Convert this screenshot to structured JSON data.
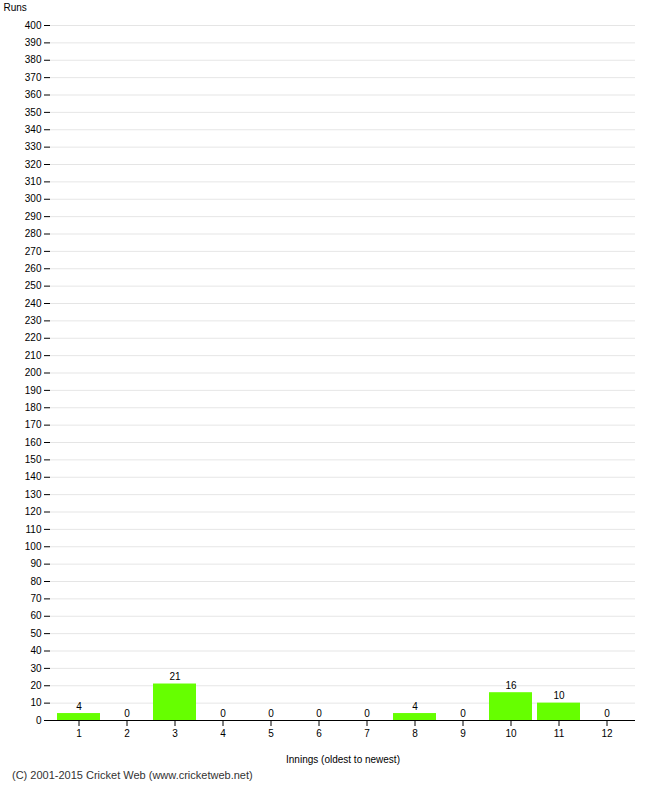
{
  "chart_data": {
    "type": "bar",
    "xlabel": "Innings (oldest to newest)",
    "ylabel": "Runs",
    "categories": [
      1,
      2,
      3,
      4,
      5,
      6,
      7,
      8,
      9,
      10,
      11,
      12
    ],
    "values": [
      4,
      0,
      21,
      0,
      0,
      0,
      0,
      4,
      0,
      16,
      10,
      0
    ],
    "color": "#66ff00",
    "ylim": [
      0,
      400
    ],
    "yticks": [
      0,
      10,
      20,
      30,
      40,
      50,
      60,
      70,
      80,
      90,
      100,
      110,
      120,
      130,
      140,
      150,
      160,
      170,
      180,
      190,
      200,
      210,
      220,
      230,
      240,
      250,
      260,
      270,
      280,
      290,
      300,
      310,
      320,
      330,
      340,
      350,
      360,
      370,
      380,
      390,
      400
    ],
    "grid": true,
    "data_labels": true,
    "footer": "(C) 2001-2015 Cricket Web (www.cricketweb.net)"
  }
}
